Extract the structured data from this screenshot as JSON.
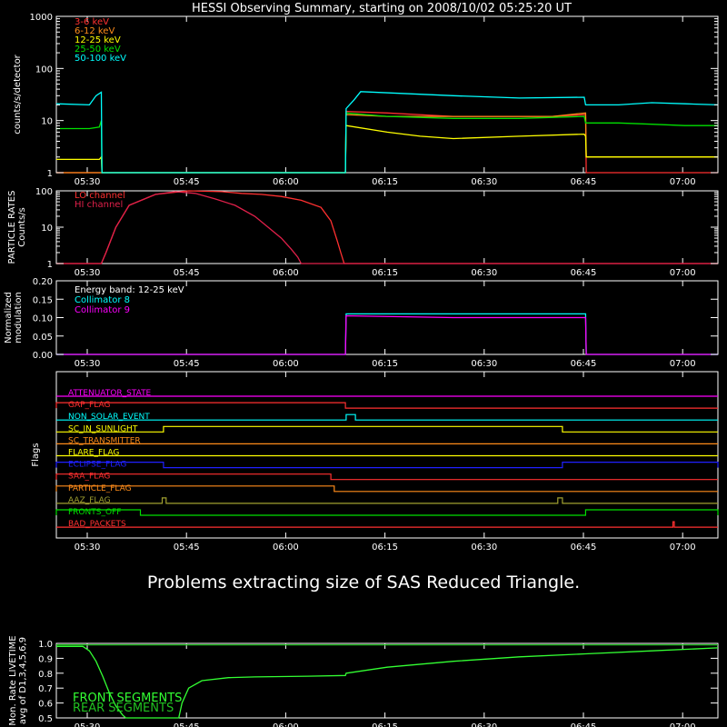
{
  "title": "HESSI Observing Summary, starting on 2008/10/02 05:25:20 UT",
  "colors": {
    "bg": "#000000",
    "axis": "#ffffff",
    "red": "#ff3030",
    "orange": "#ff8c1a",
    "yellow": "#ffff00",
    "green": "#00e000",
    "cyan": "#00ffff",
    "magenta": "#ff00ff",
    "crimson": "#e0204a",
    "blue": "#2020ff",
    "olive": "#a0a030",
    "livegreen": "#33ff33",
    "rearedge": "#20c020"
  },
  "time_ticks": [
    "05:30",
    "05:45",
    "06:00",
    "06:15",
    "06:30",
    "06:45",
    "07:00"
  ],
  "message": "Problems extracting size of SAS Reduced Triangle.",
  "chart_data": [
    {
      "id": "count-rates",
      "type": "line",
      "ylabel": "counts/s/detector",
      "yscale": "log",
      "ylim": [
        1,
        1000
      ],
      "ytick_labels": [
        "1",
        "10",
        "100",
        "1000"
      ],
      "x_unit": "minutes after 05:25:20 UT",
      "xlim": [
        0,
        100
      ],
      "legend": "top-left",
      "series": [
        {
          "name": "3-6 keV",
          "color": "red",
          "x": [
            0,
            6.8,
            6.9,
            43.7,
            43.8,
            50,
            60,
            75,
            80,
            80.1,
            100
          ],
          "y": [
            1,
            1,
            1,
            1,
            15,
            14,
            12,
            12,
            13,
            1,
            1
          ]
        },
        {
          "name": "6-12 keV",
          "color": "orange",
          "x": [
            0,
            6.8,
            6.9,
            43.7,
            43.8,
            50,
            60,
            75,
            80,
            80.1,
            90,
            100
          ],
          "y": [
            1,
            1,
            1,
            1,
            13,
            12,
            12,
            12,
            14,
            2,
            2,
            2
          ]
        },
        {
          "name": "12-25 keV",
          "color": "yellow",
          "x": [
            0,
            6.5,
            6.8,
            6.9,
            43.7,
            43.8,
            50,
            55,
            60,
            70,
            79.8,
            80,
            80.1,
            90,
            100
          ],
          "y": [
            1.8,
            1.8,
            2,
            1,
            1,
            8,
            6,
            5,
            4.5,
            5,
            5.5,
            5,
            2,
            2,
            2
          ]
        },
        {
          "name": "25-50 keV",
          "color": "green",
          "x": [
            0,
            5,
            6.5,
            6.8,
            6.9,
            43.7,
            43.8,
            50,
            60,
            70,
            79.8,
            80,
            85,
            90,
            95,
            100
          ],
          "y": [
            7,
            7,
            7.5,
            10,
            1,
            1,
            14,
            12,
            11,
            11,
            12,
            9,
            9,
            8.5,
            8,
            8
          ]
        },
        {
          "name": "50-100 keV",
          "color": "cyan",
          "x": [
            0,
            5,
            6,
            6.8,
            6.9,
            43.7,
            43.8,
            45,
            46,
            60,
            70,
            79.8,
            80,
            85,
            90,
            95,
            100
          ],
          "y": [
            21,
            20,
            30,
            35,
            1,
            1,
            17,
            25,
            36,
            30,
            27,
            28,
            20,
            20,
            22,
            21,
            20
          ]
        }
      ]
    },
    {
      "id": "particle-rates",
      "type": "line",
      "ylabel": "PARTICLE RATES Counts/s",
      "yscale": "log",
      "ylim": [
        1,
        100
      ],
      "ytick_labels": [
        "1",
        "10",
        "100"
      ],
      "x_unit": "minutes after 05:25:20 UT",
      "xlim": [
        0,
        100
      ],
      "legend": "top-left",
      "series": [
        {
          "name": "LO channel",
          "color": "red",
          "x": [
            0,
            6.8,
            7.5,
            9,
            11,
            15,
            20,
            25,
            28,
            31,
            34,
            37,
            40,
            41.5,
            42.5,
            43,
            43.5,
            100
          ],
          "y": [
            1,
            1,
            2,
            10,
            40,
            80,
            100,
            95,
            85,
            80,
            70,
            55,
            35,
            15,
            4,
            2,
            1,
            1
          ]
        },
        {
          "name": "HI channel",
          "color": "crimson",
          "x": [
            0,
            6.8,
            7.5,
            9,
            11,
            15,
            18,
            21,
            24,
            27,
            30,
            32,
            34,
            35.5,
            36.5,
            37,
            100
          ],
          "y": [
            1,
            1,
            2,
            10,
            40,
            80,
            95,
            85,
            60,
            40,
            20,
            10,
            5,
            2.5,
            1.5,
            1,
            1
          ]
        }
      ]
    },
    {
      "id": "modulation",
      "type": "line",
      "ylabel": "Normalized modulation",
      "ylim": [
        0.0,
        0.2
      ],
      "ytick_labels": [
        "0.00",
        "0.05",
        "0.10",
        "0.15",
        "0.20"
      ],
      "x_unit": "minutes after 05:25:20 UT",
      "xlim": [
        0,
        100
      ],
      "legend": "top-left",
      "annotation": "Energy band: 12-25 keV",
      "series": [
        {
          "name": "Collimator 8",
          "color": "cyan",
          "x": [
            0,
            43.7,
            43.8,
            60,
            80,
            80.1,
            100
          ],
          "y": [
            0,
            0,
            0.11,
            0.11,
            0.11,
            0,
            0
          ]
        },
        {
          "name": "Collimator 9",
          "color": "magenta",
          "x": [
            0,
            43.7,
            43.8,
            60,
            80,
            80.1,
            100
          ],
          "y": [
            0,
            0,
            0.105,
            0.1,
            0.1,
            0,
            0
          ]
        }
      ]
    },
    {
      "id": "flags",
      "type": "line",
      "ylabel": "Flags",
      "xlim": [
        0,
        100
      ],
      "x_unit": "minutes after 05:25:20 UT",
      "series": [
        {
          "name": "ATTENUATOR_STATE",
          "color": "magenta",
          "on": []
        },
        {
          "name": "GAP_FLAG",
          "color": "red",
          "on": [
            [
              0,
              43.7
            ]
          ]
        },
        {
          "name": "NON_SOLAR_EVENT",
          "color": "cyan",
          "on": [
            [
              43.8,
              45.2
            ]
          ]
        },
        {
          "name": "SC_IN_SUNLIGHT",
          "color": "yellow",
          "on": [
            [
              16.2,
              76.5
            ]
          ]
        },
        {
          "name": "SC_TRANSMITTER",
          "color": "orange",
          "on": []
        },
        {
          "name": "FLARE_FLAG",
          "color": "yellow",
          "on": []
        },
        {
          "name": "ECLIPSE_FLAG",
          "color": "blue",
          "on": [
            [
              0,
              16.2
            ],
            [
              76.5,
              100
            ]
          ]
        },
        {
          "name": "SAA_FLAG",
          "color": "red",
          "on": [
            [
              0,
              41.5
            ]
          ]
        },
        {
          "name": "PARTICLE_FLAG",
          "color": "orange",
          "on": [
            [
              0,
              42.0
            ]
          ]
        },
        {
          "name": "AAZ_FLAG",
          "color": "olive",
          "on": [
            [
              16.0,
              16.6
            ],
            [
              75.8,
              76.5
            ]
          ]
        },
        {
          "name": "FRONTS_OFF",
          "color": "green",
          "on": [
            [
              0,
              12.7
            ],
            [
              80.0,
              100
            ]
          ]
        },
        {
          "name": "BAD_PACKETS",
          "color": "red",
          "on": [
            [
              93.2,
              93.4
            ]
          ]
        }
      ]
    },
    {
      "id": "livetime",
      "type": "line",
      "ylabel": "Mon. Rate LIVETIME avg of D1,3,4,5,6,9",
      "ylim": [
        0.5,
        1.0
      ],
      "ytick_labels": [
        "0.5",
        "0.6",
        "0.7",
        "0.8",
        "0.9",
        "1.0"
      ],
      "x_unit": "minutes after 05:25:20 UT",
      "xlim": [
        0,
        100
      ],
      "legend": "bottom-left",
      "series": [
        {
          "name": "FRONT SEGMENTS",
          "color": "livegreen",
          "x": [
            0,
            4,
            5,
            6,
            7,
            8,
            9,
            10,
            10.5,
            18.5,
            19,
            20,
            22,
            26,
            30,
            38,
            43.7,
            43.8,
            50,
            60,
            70,
            80,
            90,
            100
          ],
          "y": [
            0.98,
            0.98,
            0.95,
            0.88,
            0.78,
            0.67,
            0.58,
            0.52,
            0.5,
            0.5,
            0.6,
            0.7,
            0.75,
            0.77,
            0.775,
            0.78,
            0.785,
            0.8,
            0.84,
            0.88,
            0.91,
            0.93,
            0.95,
            0.97
          ]
        },
        {
          "name": "REAR SEGMENTS",
          "color": "rearedge",
          "x": [
            0,
            43.7,
            43.8,
            100
          ],
          "y": [
            0.99,
            0.99,
            0.99,
            0.99
          ]
        }
      ]
    }
  ]
}
